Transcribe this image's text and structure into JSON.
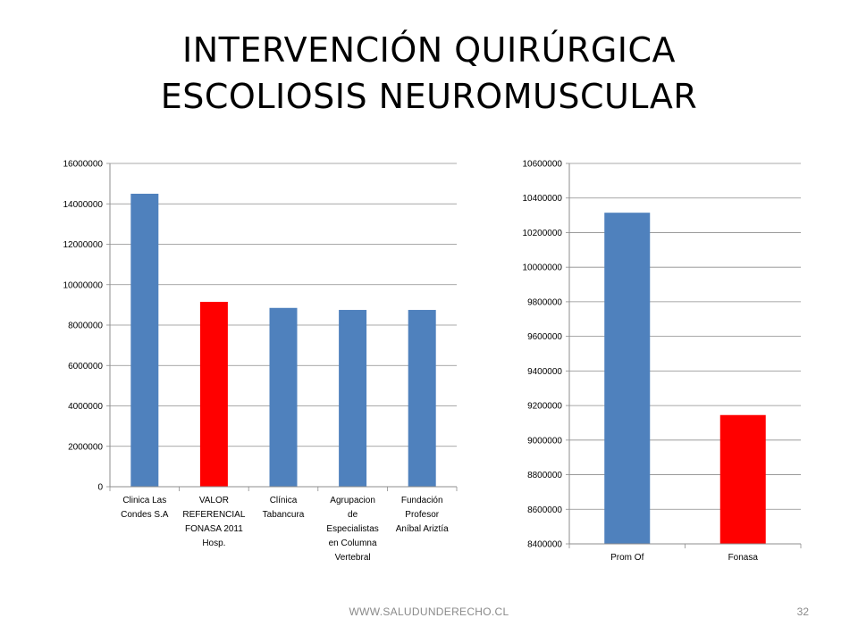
{
  "slide": {
    "title_line1": "INTERVENCIÓN QUIRÚRGICA",
    "title_line2": "ESCOLIOSIS NEUROMUSCULAR",
    "footer": "WWW.SALUDUNDERECHO.CL",
    "page_number": "32"
  },
  "chart_data": [
    {
      "type": "bar",
      "categories": [
        [
          "Clinica Las",
          "Condes S.A"
        ],
        [
          "VALOR",
          "REFERENCIAL",
          "FONASA 2011",
          "Hosp."
        ],
        [
          "Clínica",
          "Tabancura"
        ],
        [
          "Agrupacion",
          "de",
          "Especialistas",
          "en Columna",
          "Vertebral"
        ],
        [
          "Fundación",
          "Profesor",
          "Aníbal Ariztía"
        ]
      ],
      "values": [
        14500000,
        9150000,
        8850000,
        8750000,
        8750000
      ],
      "colors": [
        "#4f81bd",
        "#ff0000",
        "#4f81bd",
        "#4f81bd",
        "#4f81bd"
      ],
      "ylim": [
        0,
        16000000
      ],
      "yticks": [
        0,
        2000000,
        4000000,
        6000000,
        8000000,
        10000000,
        12000000,
        14000000,
        16000000
      ],
      "grid": true
    },
    {
      "type": "bar",
      "categories": [
        [
          "Prom Of"
        ],
        [
          "Fonasa"
        ]
      ],
      "values": [
        10315000,
        9145000
      ],
      "colors": [
        "#4f81bd",
        "#ff0000"
      ],
      "ylim": [
        8400000,
        10600000
      ],
      "yticks": [
        8400000,
        8600000,
        8800000,
        9000000,
        9200000,
        9400000,
        9600000,
        9800000,
        10000000,
        10200000,
        10400000,
        10600000
      ],
      "grid": true
    }
  ]
}
